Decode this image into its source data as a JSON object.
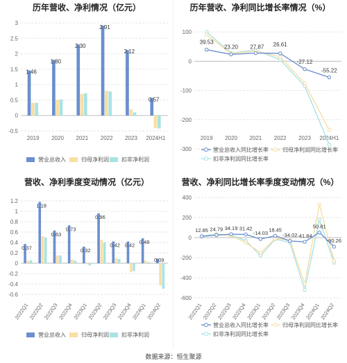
{
  "colors": {
    "revenue": "#6b8fcf",
    "netprofit": "#f8dfa3",
    "deducted": "#a8e3e4",
    "axis_text": "#666666",
    "grid": "#e6e6e6",
    "label": "#333333"
  },
  "source": "数据来源：恒生聚源",
  "chart_data": [
    {
      "type": "bar",
      "title": "历年营收、净利情况（亿元）",
      "categories": [
        "2019",
        "2020",
        "2021",
        "2022",
        "2023",
        "2024H1"
      ],
      "ylim": [
        -0.5,
        3
      ],
      "yticks": [
        "-0.5",
        "0",
        "0.5",
        "1",
        "1.5",
        "2",
        "2.5",
        "3"
      ],
      "grid": true,
      "legend_position": "bottom",
      "series": [
        {
          "name": "营业总收入",
          "color_key": "revenue",
          "values": [
            1.46,
            1.8,
            2.3,
            2.91,
            2.12,
            0.57
          ]
        },
        {
          "name": "归母净利润",
          "color_key": "netprofit",
          "values": [
            0.41,
            0.51,
            0.7,
            0.8,
            0.2,
            -0.4
          ]
        },
        {
          "name": "扣非净利润",
          "color_key": "deducted",
          "values": [
            0.41,
            0.52,
            0.72,
            0.78,
            0.1,
            -0.42
          ]
        }
      ],
      "data_labels": [
        "1.46",
        "1.80",
        "2.30",
        "2.91",
        "2.12",
        "0.57"
      ]
    },
    {
      "type": "line",
      "title": "历年营收、净利同比增长率情况（%）",
      "categories": [
        "2019",
        "2020",
        "2021",
        "2022",
        "2023",
        "2024H1"
      ],
      "ylim": [
        -300,
        150
      ],
      "yticks": [
        "-300",
        "-200",
        "-100",
        "0",
        "100"
      ],
      "grid": true,
      "legend_position": "bottom",
      "series": [
        {
          "name": "营业总收入同比增长率",
          "color_key": "revenue",
          "values": [
            39.53,
            23.2,
            27.87,
            26.61,
            -27.12,
            -55.22
          ]
        },
        {
          "name": "归母净利润同比增长率",
          "color_key": "netprofit",
          "values": [
            90,
            26,
            35,
            15,
            -75,
            -235
          ]
        },
        {
          "name": "扣非净利润同比增长率",
          "color_key": "deducted",
          "values": [
            100,
            28,
            38,
            5,
            -85,
            -285
          ]
        }
      ],
      "data_labels": [
        "39.53",
        "23.20",
        "27.87",
        "26.61",
        "-27.12",
        "-55.22"
      ]
    },
    {
      "type": "bar",
      "title": "营收、净利季度变动情况（亿元）",
      "categories": [
        "2022Q1",
        "2022Q2",
        "2022Q3",
        "2022Q4",
        "2023Q1",
        "2023Q2",
        "2023Q3",
        "2023Q4",
        "2024Q1",
        "2024Q2"
      ],
      "ylim": [
        -0.6,
        1.2
      ],
      "yticks": [
        "-0.6",
        "-0.4",
        "-0.2",
        "0",
        "0.2",
        "0.4",
        "0.6",
        "0.8",
        "1",
        "1.2"
      ],
      "grid": true,
      "legend_position": "bottom",
      "series": [
        {
          "name": "营业总收入",
          "color_key": "revenue",
          "values": [
            0.37,
            1.18,
            0.63,
            0.73,
            0.32,
            0.96,
            0.42,
            0.42,
            0.48,
            0.09
          ]
        },
        {
          "name": "归母净利润",
          "color_key": "netprofit",
          "values": [
            0.05,
            0.52,
            0.15,
            0.07,
            -0.02,
            0.45,
            0.1,
            -0.17,
            0.05,
            -0.43
          ]
        },
        {
          "name": "扣非净利润",
          "color_key": "deducted",
          "values": [
            0.06,
            0.5,
            0.15,
            0.05,
            -0.04,
            0.4,
            0.08,
            -0.15,
            0.02,
            -0.49
          ]
        }
      ],
      "data_labels": [
        "0.37",
        "1.18",
        "0.63",
        "0.73",
        "0.32",
        "0.96",
        "0.42",
        "0.42",
        "0.48",
        "0.09"
      ]
    },
    {
      "type": "line",
      "title": "营收、净利同比增长率季度变动情况（%）",
      "categories": [
        "2022Q1",
        "2022Q2",
        "2022Q3",
        "2022Q4",
        "2023Q1",
        "2023Q2",
        "2023Q3",
        "2023Q4",
        "2024Q1",
        "2024Q2"
      ],
      "ylim": [
        -600,
        400
      ],
      "yticks": [
        "-600",
        "-400",
        "-200",
        "0",
        "200",
        "400"
      ],
      "grid": true,
      "legend_position": "bottom",
      "series": [
        {
          "name": "营业总收入同比增长率",
          "color_key": "revenue",
          "values": [
            12.85,
            24.79,
            34.19,
            31.42,
            -14.03,
            18.45,
            -34.02,
            -41.84,
            50.81,
            -90.26
          ]
        },
        {
          "name": "归母净利润同比增长率",
          "color_key": "netprofit",
          "values": [
            10,
            30,
            20,
            -50,
            -150,
            -10,
            -25,
            -460,
            330,
            -230
          ]
        },
        {
          "name": "扣非净利润同比增长率",
          "color_key": "deducted",
          "values": [
            15,
            35,
            25,
            -30,
            -180,
            -15,
            -50,
            -520,
            180,
            -250
          ]
        }
      ],
      "data_labels": [
        "12.85",
        "24.79",
        "34.19",
        "31.42",
        "-14.03",
        "18.45",
        "-34.02",
        "-41.84",
        "50.81",
        "-90.26"
      ]
    }
  ]
}
